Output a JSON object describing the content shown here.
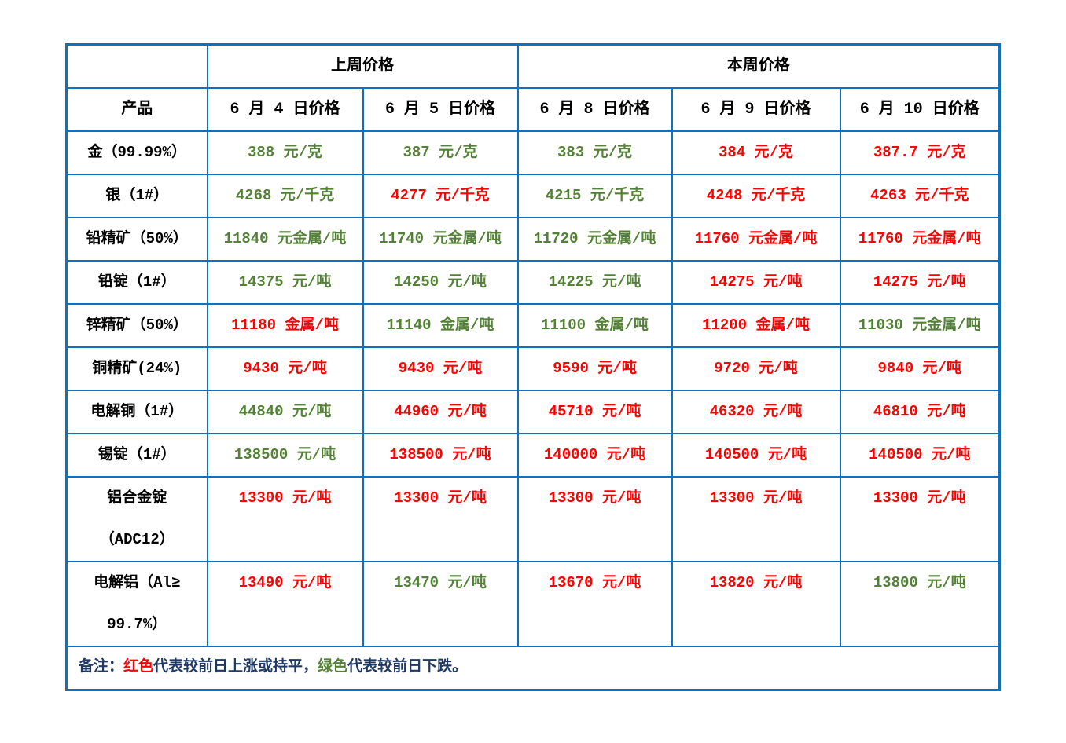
{
  "colors": {
    "red": "#ff0000",
    "green": "#538135",
    "navy": "#1f3864",
    "border": "#0f6fc0",
    "header_text": "#000000"
  },
  "header": {
    "last_week": "上周价格",
    "this_week": "本周价格",
    "product": "产品",
    "dates": [
      "6 月 4 日价格",
      "6 月 5 日价格",
      "6 月 8 日价格",
      "6 月 9 日价格",
      "6 月 10 日价格"
    ]
  },
  "rows": [
    {
      "product": [
        "金（99.99%）"
      ],
      "values": [
        {
          "text": "388 元/克",
          "color": "green"
        },
        {
          "text": "387 元/克",
          "color": "green"
        },
        {
          "text": "383 元/克",
          "color": "green"
        },
        {
          "text": "384 元/克",
          "color": "red"
        },
        {
          "text": "387.7 元/克",
          "color": "red"
        }
      ]
    },
    {
      "product": [
        "银（1#）"
      ],
      "values": [
        {
          "text": "4268 元/千克",
          "color": "green"
        },
        {
          "text": "4277 元/千克",
          "color": "red"
        },
        {
          "text": "4215 元/千克",
          "color": "green"
        },
        {
          "text": "4248 元/千克",
          "color": "red"
        },
        {
          "text": "4263 元/千克",
          "color": "red"
        }
      ]
    },
    {
      "product": [
        "铅精矿（50%）"
      ],
      "values": [
        {
          "text": "11840 元金属/吨",
          "color": "green"
        },
        {
          "text": "11740 元金属/吨",
          "color": "green"
        },
        {
          "text": "11720 元金属/吨",
          "color": "green"
        },
        {
          "text": "11760 元金属/吨",
          "color": "red"
        },
        {
          "text": "11760 元金属/吨",
          "color": "red"
        }
      ]
    },
    {
      "product": [
        "铅锭（1#）"
      ],
      "values": [
        {
          "text": "14375 元/吨",
          "color": "green"
        },
        {
          "text": "14250 元/吨",
          "color": "green"
        },
        {
          "text": "14225 元/吨",
          "color": "green"
        },
        {
          "text": "14275 元/吨",
          "color": "red"
        },
        {
          "text": "14275 元/吨",
          "color": "red"
        }
      ]
    },
    {
      "product": [
        "锌精矿（50%）"
      ],
      "values": [
        {
          "text": "11180 金属/吨",
          "color": "red"
        },
        {
          "text": "11140 金属/吨",
          "color": "green"
        },
        {
          "text": "11100 金属/吨",
          "color": "green"
        },
        {
          "text": "11200 金属/吨",
          "color": "red"
        },
        {
          "text": "11030 元金属/吨",
          "color": "green"
        }
      ]
    },
    {
      "product": [
        "铜精矿(24%)"
      ],
      "values": [
        {
          "text": "9430 元/吨",
          "color": "red"
        },
        {
          "text": "9430 元/吨",
          "color": "red"
        },
        {
          "text": "9590 元/吨",
          "color": "red"
        },
        {
          "text": "9720 元/吨",
          "color": "red"
        },
        {
          "text": "9840 元/吨",
          "color": "red"
        }
      ]
    },
    {
      "product": [
        "电解铜（1#）"
      ],
      "values": [
        {
          "text": "44840 元/吨",
          "color": "green"
        },
        {
          "text": "44960 元/吨",
          "color": "red"
        },
        {
          "text": "45710 元/吨",
          "color": "red"
        },
        {
          "text": "46320 元/吨",
          "color": "red"
        },
        {
          "text": "46810 元/吨",
          "color": "red"
        }
      ]
    },
    {
      "product": [
        "锡锭（1#）"
      ],
      "values": [
        {
          "text": "138500 元/吨",
          "color": "green"
        },
        {
          "text": "138500 元/吨",
          "color": "red"
        },
        {
          "text": "140000 元/吨",
          "color": "red"
        },
        {
          "text": "140500 元/吨",
          "color": "red"
        },
        {
          "text": "140500 元/吨",
          "color": "red"
        }
      ]
    },
    {
      "product": [
        "铝合金锭",
        "（ADC12）"
      ],
      "values": [
        {
          "text": "13300 元/吨",
          "color": "red"
        },
        {
          "text": "13300 元/吨",
          "color": "red"
        },
        {
          "text": "13300 元/吨",
          "color": "red"
        },
        {
          "text": "13300 元/吨",
          "color": "red"
        },
        {
          "text": "13300 元/吨",
          "color": "red"
        }
      ]
    },
    {
      "product": [
        "电解铝（Al≥",
        "99.7%）"
      ],
      "values": [
        {
          "text": "13490 元/吨",
          "color": "red"
        },
        {
          "text": "13470 元/吨",
          "color": "green"
        },
        {
          "text": "13670 元/吨",
          "color": "red"
        },
        {
          "text": "13820 元/吨",
          "color": "red"
        },
        {
          "text": "13800 元/吨",
          "color": "green"
        }
      ]
    }
  ],
  "note": {
    "segments": [
      {
        "text": "备注：",
        "color": "navy"
      },
      {
        "text": "红色",
        "color": "red"
      },
      {
        "text": "代表较前日上涨或持平，",
        "color": "navy"
      },
      {
        "text": "绿色",
        "color": "green"
      },
      {
        "text": "代表较前日下跌。",
        "color": "navy"
      }
    ]
  }
}
